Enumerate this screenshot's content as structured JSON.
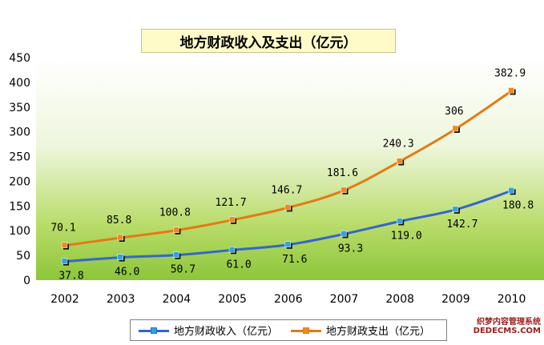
{
  "chart_data": {
    "type": "line",
    "title": "地方财政收入及支出（亿元）",
    "categories": [
      "2002",
      "2003",
      "2004",
      "2005",
      "2006",
      "2007",
      "2008",
      "2009",
      "2010"
    ],
    "ylim": [
      0,
      450
    ],
    "yticks": [
      0,
      50,
      100,
      150,
      200,
      250,
      300,
      350,
      400,
      450
    ],
    "grid": false,
    "legend_position": "bottom",
    "series": [
      {
        "name": "地方财政收入（亿元）",
        "values": [
          37.8,
          46.0,
          50.7,
          61.0,
          71.6,
          93.3,
          119.0,
          142.7,
          180.8
        ],
        "labels": [
          "37.8",
          "46.0",
          "50.7",
          "61.0",
          "71.6",
          "93.3",
          "119.0",
          "142.7",
          "180.8"
        ],
        "color": "#3366cc",
        "marker_color": "#33a3dc"
      },
      {
        "name": "地方财政支出（亿元）",
        "values": [
          70.1,
          85.8,
          100.8,
          121.7,
          146.7,
          181.6,
          240.3,
          306,
          382.9
        ],
        "labels": [
          "70.1",
          "85.8",
          "100.8",
          "121.7",
          "146.7",
          "181.6",
          "240.3",
          "306",
          "382.9"
        ],
        "color": "#e47a14",
        "marker_color": "#f08a1c"
      }
    ]
  },
  "watermark": {
    "line1": "织梦内容管理系统",
    "line2": "DEDECMS.COM"
  }
}
